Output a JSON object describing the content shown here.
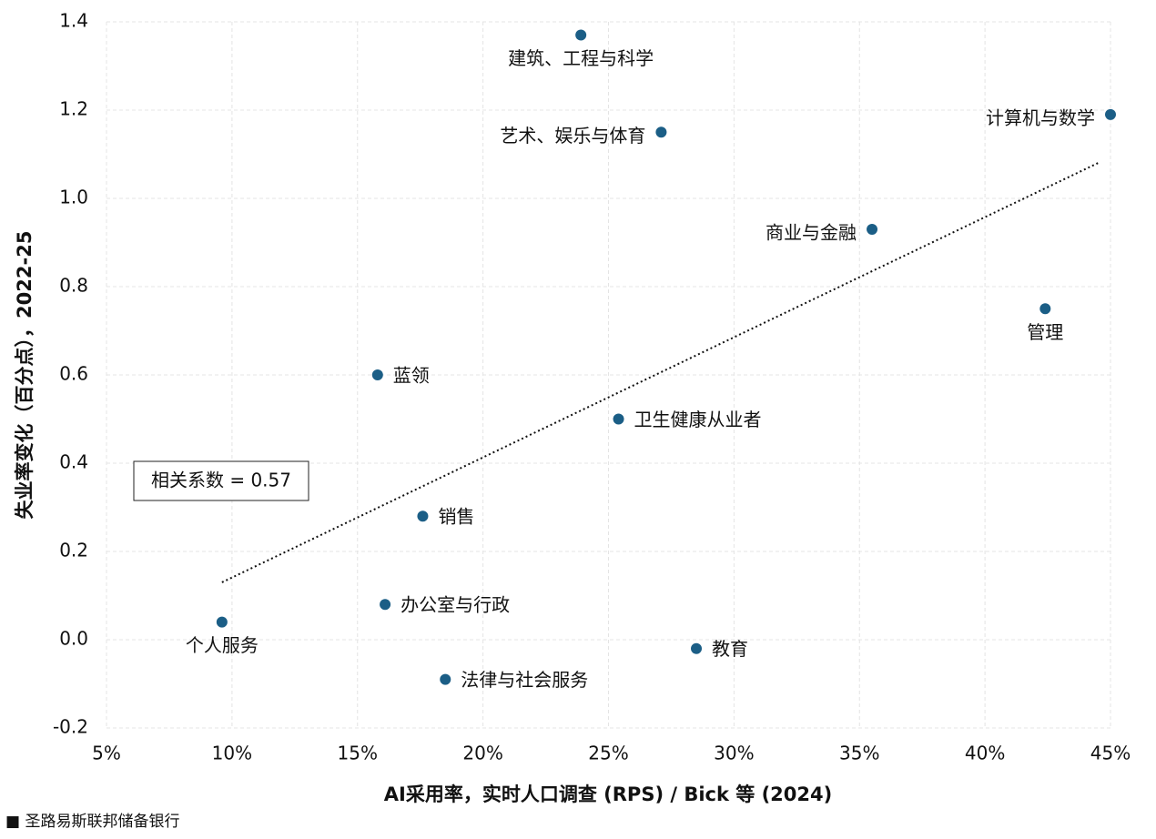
{
  "chart_data": {
    "type": "scatter",
    "xlabel": "AI采用率，实时人口调查 (RPS) / Bick 等 (2024)",
    "ylabel": "失业率变化（百分点），2022-25",
    "annotation": "相关系数 = 0.57",
    "source": "■ 圣路易斯联邦储备银行",
    "color": "#1b5e86",
    "grid": true,
    "xlim": [
      5,
      45
    ],
    "ylim": [
      -0.2,
      1.4
    ],
    "xticks": [
      {
        "value": 5,
        "label": "5%"
      },
      {
        "value": 10,
        "label": "10%"
      },
      {
        "value": 15,
        "label": "15%"
      },
      {
        "value": 20,
        "label": "20%"
      },
      {
        "value": 25,
        "label": "25%"
      },
      {
        "value": 30,
        "label": "30%"
      },
      {
        "value": 35,
        "label": "35%"
      },
      {
        "value": 40,
        "label": "40%"
      },
      {
        "value": 45,
        "label": "45%"
      }
    ],
    "yticks": [
      -0.2,
      {
        "value": 0,
        "label": "0.0"
      },
      0.2,
      0.4,
      0.6,
      0.8,
      {
        "value": 1,
        "label": "1.0"
      },
      1.2,
      1.4
    ],
    "labels": [
      "建筑、工程与科学",
      "艺术、娱乐与体育",
      "计算机与数学",
      "商业与金融",
      "管理",
      "蓝领",
      "卫生健康从业者",
      "销售",
      "办公室与行政",
      "个人服务",
      "教育",
      "法律与社会服务"
    ],
    "x": [
      23.9,
      27.1,
      45.0,
      35.5,
      42.4,
      15.8,
      25.4,
      17.6,
      16.1,
      9.6,
      28.5,
      18.5
    ],
    "y": [
      1.37,
      1.15,
      1.19,
      0.93,
      0.75,
      0.6,
      0.5,
      0.28,
      0.08,
      0.04,
      -0.02,
      -0.09
    ],
    "trendline": {
      "x": [
        9.6,
        44.5
      ],
      "y": [
        0.13,
        1.08
      ]
    }
  }
}
